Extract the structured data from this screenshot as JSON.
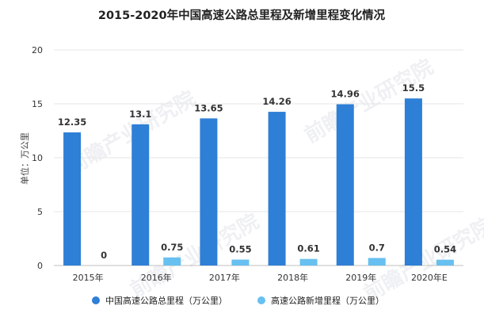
{
  "chart_data": {
    "type": "bar",
    "title": "2015-2020年中国高速公路总里程及新增里程变化情况",
    "ylabel": "单位：万公里",
    "xlabel": "",
    "ylim": [
      0,
      20
    ],
    "yticks": [
      "0",
      "5",
      "10",
      "15",
      "20"
    ],
    "grid": true,
    "legend_position": "bottom",
    "categories": [
      "2015年",
      "2016年",
      "2017年",
      "2018年",
      "2019年",
      "2020年E"
    ],
    "series": [
      {
        "name": "中国高速公路总里程（万公里）",
        "color": "#2e7fd6",
        "values": [
          12.35,
          13.1,
          13.65,
          14.26,
          14.96,
          15.5
        ],
        "labels": [
          "12.35",
          "13.1",
          "13.65",
          "14.26",
          "14.96",
          "15.5"
        ]
      },
      {
        "name": "高速公路新增里程（万公里）",
        "color": "#67c0f0",
        "values": [
          0,
          0.75,
          0.55,
          0.61,
          0.7,
          0.54
        ],
        "labels": [
          "0",
          "0.75",
          "0.55",
          "0.61",
          "0.7",
          "0.54"
        ]
      }
    ],
    "watermark": "前瞻产业研究院"
  }
}
